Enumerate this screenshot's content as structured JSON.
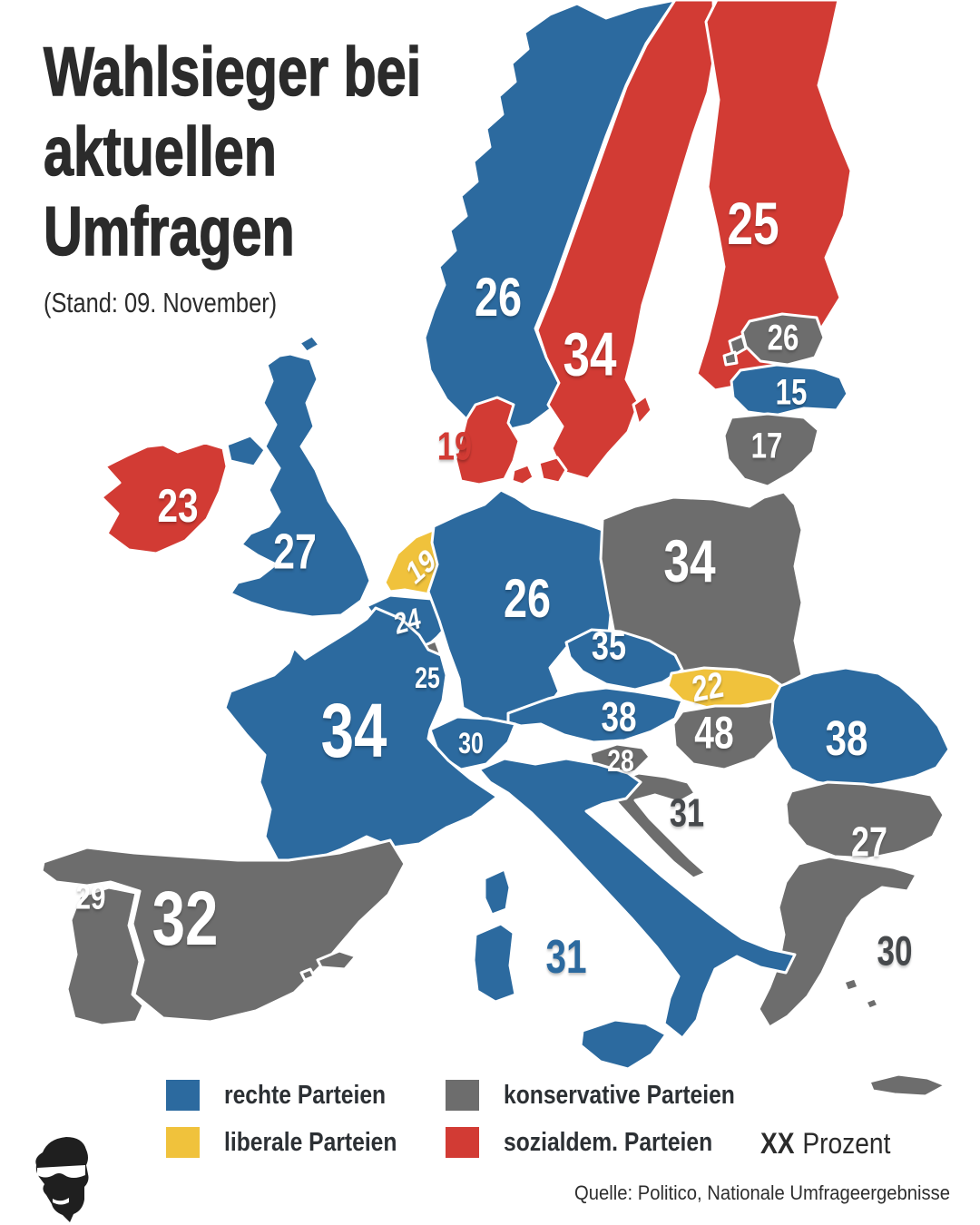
{
  "header": {
    "title_lines": [
      "Wahlsieger bei",
      "aktuellen",
      "Umfragen"
    ],
    "subtitle": "(Stand: 09. November)"
  },
  "parties": {
    "rechts": {
      "label": "rechte Parteien",
      "color": "#2c6a9f"
    },
    "konservativ": {
      "label": "konservative Parteien",
      "color": "#6d6d6d"
    },
    "liberal": {
      "label": "liberale Parteien",
      "color": "#f0c23c"
    },
    "sozialdem": {
      "label": "sozialdem. Parteien",
      "color": "#d23b34"
    }
  },
  "legend": {
    "order": [
      "rechts",
      "konservativ",
      "liberal",
      "sozialdem"
    ],
    "unit_bold": "XX",
    "unit_text": "Prozent"
  },
  "source": "Quelle: Politico, Nationale Umfrageergebnisse",
  "label_colors": {
    "default": "#ffffff",
    "dark": "#46494c"
  },
  "countries": [
    {
      "id": "norway",
      "party": "rechts",
      "value": "26"
    },
    {
      "id": "sweden",
      "party": "sozialdem",
      "value": "34"
    },
    {
      "id": "finland",
      "party": "sozialdem",
      "value": "25"
    },
    {
      "id": "denmark",
      "party": "sozialdem",
      "value": "19",
      "label_color": "party"
    },
    {
      "id": "estonia",
      "party": "konservativ",
      "value": "26"
    },
    {
      "id": "latvia",
      "party": "rechts",
      "value": "15"
    },
    {
      "id": "lithuania",
      "party": "konservativ",
      "value": "17"
    },
    {
      "id": "uk",
      "party": "rechts",
      "value": "27"
    },
    {
      "id": "ireland",
      "party": "sozialdem",
      "value": "23"
    },
    {
      "id": "netherlands",
      "party": "liberal",
      "value": "19"
    },
    {
      "id": "belgium",
      "party": "rechts",
      "value": "24"
    },
    {
      "id": "luxembourg",
      "party": "konservativ",
      "value": "25"
    },
    {
      "id": "germany",
      "party": "rechts",
      "value": "26"
    },
    {
      "id": "poland",
      "party": "konservativ",
      "value": "34"
    },
    {
      "id": "czechia",
      "party": "rechts",
      "value": "35"
    },
    {
      "id": "slovakia",
      "party": "liberal",
      "value": "22"
    },
    {
      "id": "austria",
      "party": "rechts",
      "value": "38"
    },
    {
      "id": "hungary",
      "party": "konservativ",
      "value": "48"
    },
    {
      "id": "slovenia",
      "party": "konservativ",
      "value": "28"
    },
    {
      "id": "croatia",
      "party": "konservativ",
      "value": "31",
      "label_color": "dark"
    },
    {
      "id": "romania",
      "party": "rechts",
      "value": "38"
    },
    {
      "id": "bulgaria",
      "party": "konservativ",
      "value": "27"
    },
    {
      "id": "greece",
      "party": "konservativ",
      "value": "30",
      "label_color": "dark"
    },
    {
      "id": "italy",
      "party": "rechts",
      "value": "31",
      "label_color": "party"
    },
    {
      "id": "switzerland",
      "party": "rechts",
      "value": "30"
    },
    {
      "id": "france",
      "party": "rechts",
      "value": "34"
    },
    {
      "id": "spain",
      "party": "konservativ",
      "value": "32"
    },
    {
      "id": "portugal",
      "party": "konservativ",
      "value": "29"
    }
  ]
}
